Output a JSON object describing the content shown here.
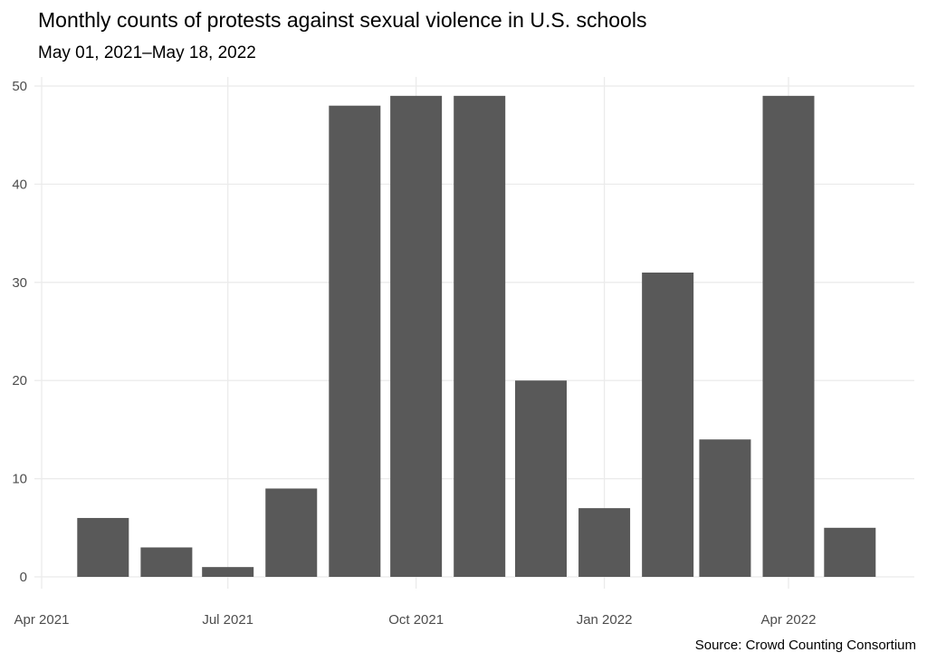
{
  "chart_data": {
    "type": "bar",
    "title": "Monthly counts of protests against sexual violence in U.S. schools",
    "subtitle": "May 01, 2021–May 18, 2022",
    "caption": "Source: Crowd Counting Consortium",
    "xlabel": "",
    "ylabel": "",
    "categories": [
      "2021-05-01",
      "2021-06-01",
      "2021-07-01",
      "2021-08-01",
      "2021-09-01",
      "2021-10-01",
      "2021-11-01",
      "2021-12-01",
      "2022-01-01",
      "2022-02-01",
      "2022-03-01",
      "2022-04-01",
      "2022-05-01"
    ],
    "values": [
      6,
      3,
      1,
      9,
      48,
      49,
      49,
      20,
      7,
      31,
      14,
      49,
      5
    ],
    "ylim": [
      0,
      50
    ],
    "y_ticks": [
      0,
      10,
      20,
      30,
      40,
      50
    ],
    "y_tick_labels": [
      "0",
      "10",
      "20",
      "30",
      "40",
      "50"
    ],
    "x_ticks": [
      "2021-04-01",
      "2021-07-01",
      "2021-10-01",
      "2022-01-01",
      "2022-04-01"
    ],
    "x_tick_labels": [
      "Apr 2021",
      "Jul 2021",
      "Oct 2021",
      "Jan 2022",
      "Apr 2022"
    ],
    "bar_color": "#595959",
    "grid": true
  }
}
